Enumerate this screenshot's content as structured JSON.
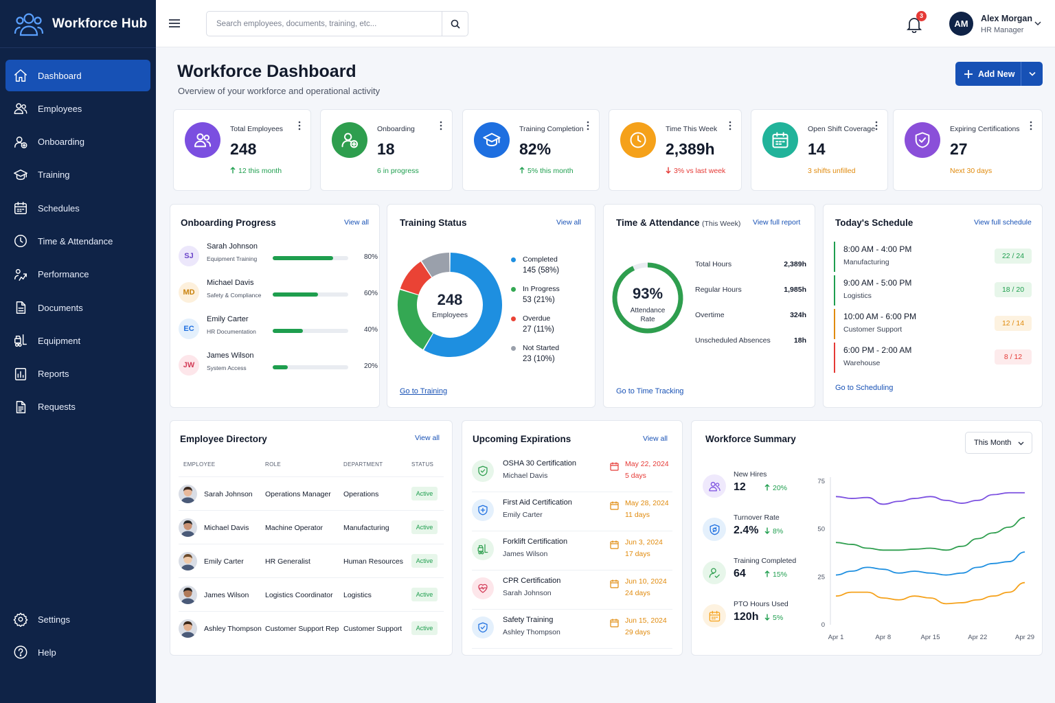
{
  "app": {
    "name": "Workforce Hub"
  },
  "nav": {
    "items": [
      {
        "label": "Dashboard",
        "icon": "home-icon",
        "active": true
      },
      {
        "label": "Employees",
        "icon": "users-icon"
      },
      {
        "label": "Onboarding",
        "icon": "user-plus-icon"
      },
      {
        "label": "Training",
        "icon": "graduation-cap-icon"
      },
      {
        "label": "Schedules",
        "icon": "calendar-icon"
      },
      {
        "label": "Time & Attendance",
        "icon": "clock-icon"
      },
      {
        "label": "Performance",
        "icon": "performance-icon"
      },
      {
        "label": "Documents",
        "icon": "document-icon"
      },
      {
        "label": "Equipment",
        "icon": "forklift-icon"
      },
      {
        "label": "Reports",
        "icon": "reports-icon"
      },
      {
        "label": "Requests",
        "icon": "requests-icon"
      }
    ],
    "bottom": [
      {
        "label": "Settings",
        "icon": "gear-icon"
      },
      {
        "label": "Help",
        "icon": "help-icon"
      }
    ]
  },
  "topbar": {
    "search_placeholder": "Search employees, documents, training, etc...",
    "notifications_count": "3",
    "user": {
      "initials": "AM",
      "name": "Alex Morgan",
      "role": "HR Manager"
    }
  },
  "page": {
    "title": "Workforce Dashboard",
    "subtitle": "Overview of your workforce and operational activity",
    "add_label": "Add New"
  },
  "stats": [
    {
      "label": "Total Employees",
      "value": "248",
      "sub": "12 this month",
      "trend": "up",
      "color": "#7b4fe0",
      "icon": "users-icon"
    },
    {
      "label": "Onboarding",
      "value": "18",
      "sub": "6 in progress",
      "trend": "none",
      "color": "#2e9e4e",
      "icon": "user-plus-icon"
    },
    {
      "label": "Training Completion",
      "value": "82%",
      "sub": "5% this month",
      "trend": "up",
      "color": "#1e6fe0",
      "icon": "graduation-cap-icon"
    },
    {
      "label": "Time This Week",
      "value": "2,389h",
      "sub": "3% vs last week",
      "trend": "down",
      "color": "#f5a11a",
      "icon": "clock-icon"
    },
    {
      "label": "Open Shift Coverage",
      "value": "14",
      "sub": "3 shifts unfilled",
      "trend": "none",
      "color": "#21b39a",
      "icon": "calendar-icon"
    },
    {
      "label": "Expiring Certifications",
      "value": "27",
      "sub": "Next 30 days",
      "trend": "none",
      "color": "#8a4fd9",
      "icon": "shield-check-icon"
    }
  ],
  "onboarding": {
    "title": "Onboarding Progress",
    "link": "View all",
    "items": [
      {
        "initials": "SJ",
        "name": "Sarah Johnson",
        "task": "Equipment Training",
        "progress": 80,
        "pct": "80%",
        "bg": "#ece7fb",
        "fg": "#6b45c9"
      },
      {
        "initials": "MD",
        "name": "Michael Davis",
        "task": "Safety & Compliance",
        "progress": 60,
        "pct": "60%",
        "bg": "#fdf0dc",
        "fg": "#c9830f"
      },
      {
        "initials": "EC",
        "name": "Emily Carter",
        "task": "HR Documentation",
        "progress": 40,
        "pct": "40%",
        "bg": "#e4f0fc",
        "fg": "#1e6fe0"
      },
      {
        "initials": "JW",
        "name": "James Wilson",
        "task": "System Access",
        "progress": 20,
        "pct": "20%",
        "bg": "#fde6ea",
        "fg": "#d23b57"
      }
    ]
  },
  "training": {
    "title": "Training Status",
    "link": "View all",
    "center_value": "248",
    "center_label": "Employees",
    "footer_link": "Go to Training",
    "segments": [
      {
        "label": "Completed",
        "value": 145,
        "text": "145 (58%)",
        "color": "#1e8fe0"
      },
      {
        "label": "In Progress",
        "value": 53,
        "text": "53 (21%)",
        "color": "#34a853"
      },
      {
        "label": "Overdue",
        "value": 27,
        "text": "27 (11%)",
        "color": "#ea4335"
      },
      {
        "label": "Not Started",
        "value": 23,
        "text": "23 (10%)",
        "color": "#9aa0ab"
      }
    ]
  },
  "attendance": {
    "title": "Time & Attendance",
    "period": "(This Week)",
    "link": "View full report",
    "rate": 93,
    "rate_text": "93%",
    "rate_label_1": "Attendance",
    "rate_label_2": "Rate",
    "rows": [
      {
        "label": "Total Hours",
        "value": "2,389h"
      },
      {
        "label": "Regular Hours",
        "value": "1,985h"
      },
      {
        "label": "Overtime",
        "value": "324h"
      },
      {
        "label": "Unscheduled Absences",
        "value": "18h"
      }
    ],
    "footer_link": "Go to Time Tracking"
  },
  "schedule": {
    "title": "Today's Schedule",
    "link": "View full schedule",
    "items": [
      {
        "time": "8:00 AM - 4:00 PM",
        "dept": "Manufacturing",
        "count": "22 / 24",
        "tone": "green"
      },
      {
        "time": "9:00 AM - 5:00 PM",
        "dept": "Logistics",
        "count": "18 / 20",
        "tone": "green"
      },
      {
        "time": "10:00 AM - 6:00 PM",
        "dept": "Customer Support",
        "count": "12 / 14",
        "tone": "orange"
      },
      {
        "time": "6:00 PM - 2:00 AM",
        "dept": "Warehouse",
        "count": "8 / 12",
        "tone": "red"
      }
    ],
    "footer_link": "Go to Scheduling"
  },
  "directory": {
    "title": "Employee Directory",
    "link": "View all",
    "headers": [
      "EMPLOYEE",
      "ROLE",
      "DEPARTMENT",
      "STATUS"
    ],
    "rows": [
      {
        "name": "Sarah Johnson",
        "role": "Operations Manager",
        "dept": "Operations",
        "status": "Active"
      },
      {
        "name": "Michael Davis",
        "role": "Machine Operator",
        "dept": "Manufacturing",
        "status": "Active"
      },
      {
        "name": "Emily Carter",
        "role": "HR Generalist",
        "dept": "Human Resources",
        "status": "Active"
      },
      {
        "name": "James Wilson",
        "role": "Logistics Coordinator",
        "dept": "Logistics",
        "status": "Active"
      },
      {
        "name": "Ashley Thompson",
        "role": "Customer Support Rep",
        "dept": "Customer Support",
        "status": "Active"
      }
    ]
  },
  "expirations": {
    "title": "Upcoming Expirations",
    "link": "View all",
    "items": [
      {
        "title": "OSHA 30 Certification",
        "name": "Michael Davis",
        "date": "May 22, 2024",
        "days": "5 days",
        "tone": "red",
        "icon": "shield-icon",
        "color": "#2e9e4e",
        "bg": "#e7f6ea"
      },
      {
        "title": "First Aid Certification",
        "name": "Emily Carter",
        "date": "May 28, 2024",
        "days": "11 days",
        "tone": "orange",
        "icon": "first-aid-icon",
        "color": "#1e6fe0",
        "bg": "#e4f0fc"
      },
      {
        "title": "Forklift Certification",
        "name": "James Wilson",
        "date": "Jun 3, 2024",
        "days": "17 days",
        "tone": "orange",
        "icon": "forklift-icon",
        "color": "#2e9e4e",
        "bg": "#e7f6ea"
      },
      {
        "title": "CPR Certification",
        "name": "Sarah Johnson",
        "date": "Jun 10, 2024",
        "days": "24 days",
        "tone": "orange",
        "icon": "heart-pulse-icon",
        "color": "#d23b57",
        "bg": "#fde6ea"
      },
      {
        "title": "Safety Training",
        "name": "Ashley Thompson",
        "date": "Jun 15, 2024",
        "days": "29 days",
        "tone": "orange",
        "icon": "shield-check-icon",
        "color": "#1e6fe0",
        "bg": "#e4f0fc"
      }
    ]
  },
  "summary": {
    "title": "Workforce Summary",
    "period": "This Month",
    "metrics": [
      {
        "label": "New Hires",
        "value": "12",
        "change": "20%",
        "dir": "up",
        "color": "#7b4fe0",
        "bg": "#efe9fc",
        "icon": "users-icon"
      },
      {
        "label": "Turnover Rate",
        "value": "2.4%",
        "change": "8%",
        "dir": "down",
        "color": "#1e6fe0",
        "bg": "#e4f0fc",
        "icon": "turnover-icon"
      },
      {
        "label": "Training Completed",
        "value": "64",
        "change": "15%",
        "dir": "up",
        "color": "#2e9e4e",
        "bg": "#e7f6ea",
        "icon": "user-check-icon"
      },
      {
        "label": "PTO Hours Used",
        "value": "120h",
        "change": "5%",
        "dir": "down",
        "color": "#f5a11a",
        "bg": "#fdf2e0",
        "icon": "calendar-icon"
      }
    ]
  },
  "chart_data": {
    "type": "line",
    "x": [
      "Apr 1",
      "Apr 3",
      "Apr 5",
      "Apr 8",
      "Apr 10",
      "Apr 12",
      "Apr 15",
      "Apr 17",
      "Apr 19",
      "Apr 22",
      "Apr 24",
      "Apr 26",
      "Apr 29"
    ],
    "x_ticks": [
      "Apr 1",
      "Apr 8",
      "Apr 15",
      "Apr 22",
      "Apr 29"
    ],
    "y_ticks": [
      "0",
      "25",
      "50",
      "75"
    ],
    "ylim": [
      0,
      75
    ],
    "series": [
      {
        "color": "#7b4fe0",
        "values": [
          67,
          66,
          66.5,
          63,
          64.5,
          66,
          67,
          65,
          63.5,
          65,
          68,
          69,
          69
        ]
      },
      {
        "color": "#2e9e4e",
        "values": [
          43,
          42,
          40,
          39,
          39,
          39.5,
          40,
          39,
          41,
          45,
          48,
          51,
          56
        ]
      },
      {
        "color": "#1e8fe0",
        "values": [
          26,
          28,
          30,
          29,
          27,
          28,
          27,
          26,
          27,
          30,
          32,
          33,
          38
        ]
      },
      {
        "color": "#f5a11a",
        "values": [
          15,
          17,
          17,
          14,
          13,
          15,
          14,
          11,
          11.5,
          13,
          15,
          17,
          22
        ]
      }
    ]
  }
}
